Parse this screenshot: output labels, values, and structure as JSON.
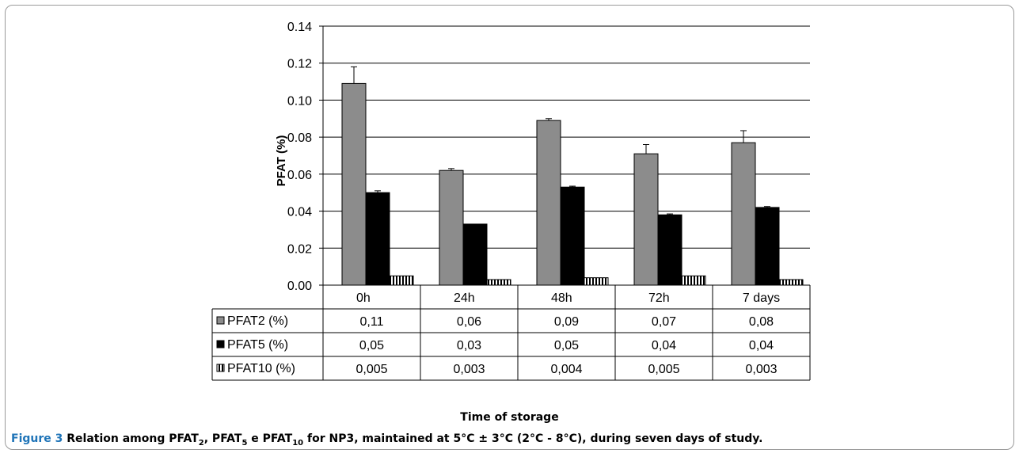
{
  "chart_data": {
    "type": "bar",
    "ylabel": "PFAT (%)",
    "xlabel": "Time of storage",
    "ylim": [
      0,
      0.14
    ],
    "yticks": [
      "0.00",
      "0.02",
      "0.04",
      "0.06",
      "0.08",
      "0.10",
      "0.12",
      "0.14"
    ],
    "categories": [
      "0h",
      "24h",
      "48h",
      "72h",
      "7 days"
    ],
    "grid": true,
    "series": [
      {
        "name": "PFAT2 (%)",
        "values": [
          0.109,
          0.062,
          0.089,
          0.071,
          0.077
        ],
        "errors": [
          0.009,
          0.001,
          0.001,
          0.005,
          0.0065
        ],
        "table_values": [
          "0,11",
          "0,06",
          "0,09",
          "0,07",
          "0,08"
        ],
        "color": "#8c8c8c",
        "pattern": "solid"
      },
      {
        "name": "PFAT5 (%)",
        "values": [
          0.05,
          0.033,
          0.053,
          0.038,
          0.042
        ],
        "errors": [
          0.001,
          0,
          0.0005,
          0.0005,
          0.0005
        ],
        "table_values": [
          "0,05",
          "0,03",
          "0,05",
          "0,04",
          "0,04"
        ],
        "color": "#000000",
        "pattern": "solid"
      },
      {
        "name": "PFAT10 (%)",
        "values": [
          0.005,
          0.003,
          0.004,
          0.005,
          0.003
        ],
        "errors": [
          0,
          0,
          0,
          0,
          0
        ],
        "table_values": [
          "0,005",
          "0,003",
          "0,004",
          "0,005",
          "0,003"
        ],
        "color": "#000000",
        "pattern": "vertical-stripes"
      }
    ]
  },
  "caption": {
    "label": "Figure 3",
    "text_parts": [
      {
        "t": " Relation among PFAT",
        "sub": false
      },
      {
        "t": "2",
        "sub": true
      },
      {
        "t": ", PFAT",
        "sub": false
      },
      {
        "t": "5",
        "sub": true
      },
      {
        "t": " e PFAT",
        "sub": false
      },
      {
        "t": "10",
        "sub": true
      },
      {
        "t": " for NP3, maintained at 5°C ± 3°C (2°C - 8°C), during seven days of study.",
        "sub": false
      }
    ]
  }
}
